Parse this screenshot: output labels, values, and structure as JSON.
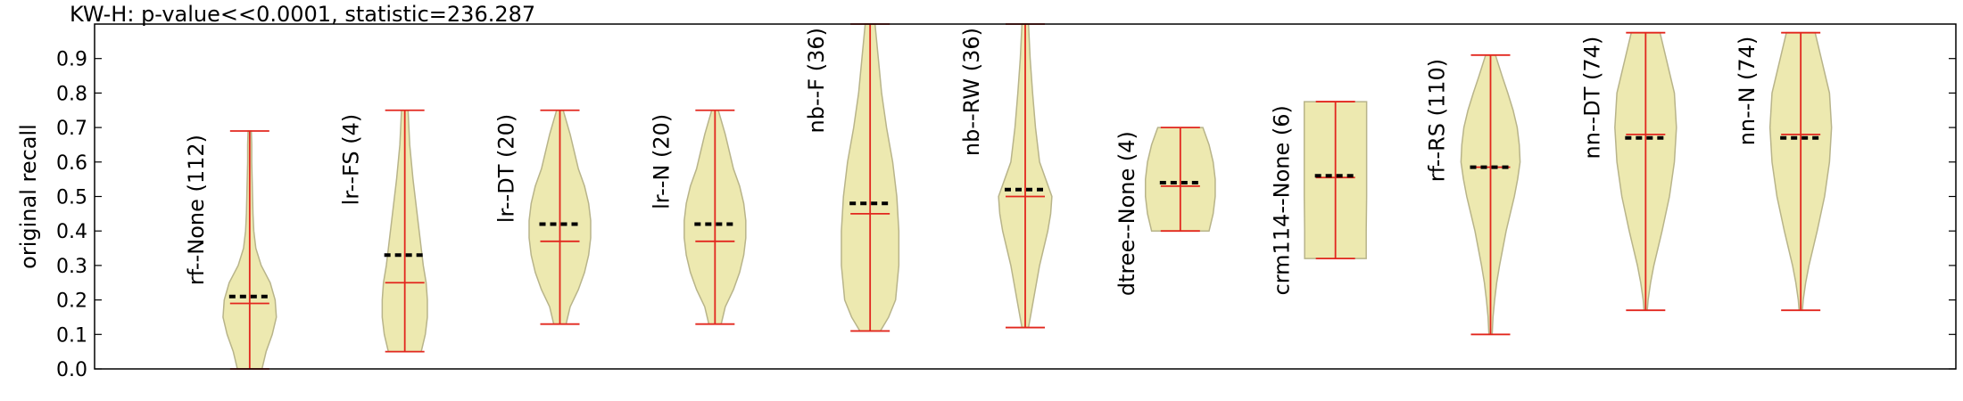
{
  "chart_data": {
    "type": "violin",
    "title": "KW-H: p-value<<0.0001, statistic=236.287",
    "ylabel": "original recall",
    "xlabel": "",
    "ylim": [
      0.0,
      1.0
    ],
    "yticks": [
      0.0,
      0.1,
      0.2,
      0.3,
      0.4,
      0.5,
      0.6,
      0.7,
      0.8,
      0.9
    ],
    "grid": false,
    "colors": {
      "body": "#ede9b0",
      "body_edge": "#b8b48a",
      "whisker": "#e2271e",
      "mean": "#000000"
    },
    "series": [
      {
        "label": "rf--None (112)",
        "min": 0.0,
        "max": 0.69,
        "median": 0.19,
        "mean": 0.21,
        "density": [
          [
            0.0,
            0.3
          ],
          [
            0.05,
            0.4
          ],
          [
            0.1,
            0.55
          ],
          [
            0.15,
            0.65
          ],
          [
            0.2,
            0.62
          ],
          [
            0.25,
            0.5
          ],
          [
            0.3,
            0.28
          ],
          [
            0.35,
            0.15
          ],
          [
            0.4,
            0.1
          ],
          [
            0.45,
            0.08
          ],
          [
            0.5,
            0.07
          ],
          [
            0.55,
            0.06
          ],
          [
            0.6,
            0.05
          ],
          [
            0.65,
            0.05
          ],
          [
            0.69,
            0.04
          ]
        ]
      },
      {
        "label": "lr--FS (4)",
        "min": 0.05,
        "max": 0.75,
        "median": 0.25,
        "mean": 0.33,
        "density": [
          [
            0.05,
            0.4
          ],
          [
            0.1,
            0.5
          ],
          [
            0.15,
            0.55
          ],
          [
            0.2,
            0.55
          ],
          [
            0.25,
            0.52
          ],
          [
            0.3,
            0.45
          ],
          [
            0.35,
            0.4
          ],
          [
            0.4,
            0.35
          ],
          [
            0.45,
            0.3
          ],
          [
            0.5,
            0.25
          ],
          [
            0.55,
            0.2
          ],
          [
            0.6,
            0.16
          ],
          [
            0.65,
            0.12
          ],
          [
            0.7,
            0.1
          ],
          [
            0.75,
            0.08
          ]
        ]
      },
      {
        "label": "lr--DT (20)",
        "min": 0.13,
        "max": 0.75,
        "median": 0.37,
        "mean": 0.42,
        "density": [
          [
            0.13,
            0.15
          ],
          [
            0.18,
            0.25
          ],
          [
            0.23,
            0.45
          ],
          [
            0.28,
            0.6
          ],
          [
            0.33,
            0.7
          ],
          [
            0.38,
            0.75
          ],
          [
            0.43,
            0.75
          ],
          [
            0.48,
            0.7
          ],
          [
            0.53,
            0.6
          ],
          [
            0.58,
            0.45
          ],
          [
            0.63,
            0.35
          ],
          [
            0.68,
            0.25
          ],
          [
            0.75,
            0.08
          ]
        ]
      },
      {
        "label": "lr--N (20)",
        "min": 0.13,
        "max": 0.75,
        "median": 0.37,
        "mean": 0.42,
        "density": [
          [
            0.13,
            0.15
          ],
          [
            0.18,
            0.25
          ],
          [
            0.23,
            0.45
          ],
          [
            0.28,
            0.6
          ],
          [
            0.33,
            0.7
          ],
          [
            0.38,
            0.75
          ],
          [
            0.43,
            0.75
          ],
          [
            0.48,
            0.7
          ],
          [
            0.53,
            0.6
          ],
          [
            0.58,
            0.45
          ],
          [
            0.63,
            0.35
          ],
          [
            0.68,
            0.25
          ],
          [
            0.75,
            0.08
          ]
        ]
      },
      {
        "label": "nb--F (36)",
        "min": 0.11,
        "max": 1.0,
        "median": 0.45,
        "mean": 0.48,
        "density": [
          [
            0.11,
            0.25
          ],
          [
            0.15,
            0.45
          ],
          [
            0.2,
            0.62
          ],
          [
            0.3,
            0.7
          ],
          [
            0.4,
            0.7
          ],
          [
            0.5,
            0.65
          ],
          [
            0.6,
            0.55
          ],
          [
            0.7,
            0.4
          ],
          [
            0.8,
            0.28
          ],
          [
            0.9,
            0.2
          ],
          [
            1.0,
            0.12
          ]
        ]
      },
      {
        "label": "nb--RW (36)",
        "min": 0.12,
        "max": 1.0,
        "median": 0.5,
        "mean": 0.52,
        "density": [
          [
            0.12,
            0.08
          ],
          [
            0.2,
            0.2
          ],
          [
            0.3,
            0.35
          ],
          [
            0.4,
            0.55
          ],
          [
            0.45,
            0.62
          ],
          [
            0.5,
            0.65
          ],
          [
            0.55,
            0.5
          ],
          [
            0.6,
            0.35
          ],
          [
            0.7,
            0.25
          ],
          [
            0.8,
            0.18
          ],
          [
            0.9,
            0.12
          ],
          [
            1.0,
            0.08
          ]
        ]
      },
      {
        "label": "dtree--None (4)",
        "min": 0.4,
        "max": 0.7,
        "median": 0.53,
        "mean": 0.54,
        "density": [
          [
            0.4,
            0.7
          ],
          [
            0.45,
            0.8
          ],
          [
            0.5,
            0.85
          ],
          [
            0.55,
            0.85
          ],
          [
            0.6,
            0.8
          ],
          [
            0.65,
            0.7
          ],
          [
            0.7,
            0.55
          ]
        ]
      },
      {
        "label": "crm114--None (6)",
        "min": 0.32,
        "max": 0.775,
        "median": 0.555,
        "mean": 0.56,
        "density": [
          [
            0.32,
            0.75
          ],
          [
            0.4,
            0.75
          ],
          [
            0.5,
            0.76
          ],
          [
            0.6,
            0.76
          ],
          [
            0.7,
            0.76
          ],
          [
            0.775,
            0.76
          ]
        ]
      },
      {
        "label": "rf--RS (110)",
        "min": 0.1,
        "max": 0.91,
        "median": 0.585,
        "mean": 0.585,
        "density": [
          [
            0.1,
            0.04
          ],
          [
            0.15,
            0.06
          ],
          [
            0.2,
            0.1
          ],
          [
            0.25,
            0.15
          ],
          [
            0.3,
            0.22
          ],
          [
            0.35,
            0.3
          ],
          [
            0.4,
            0.38
          ],
          [
            0.45,
            0.48
          ],
          [
            0.5,
            0.58
          ],
          [
            0.55,
            0.66
          ],
          [
            0.6,
            0.72
          ],
          [
            0.65,
            0.7
          ],
          [
            0.7,
            0.65
          ],
          [
            0.75,
            0.55
          ],
          [
            0.8,
            0.42
          ],
          [
            0.85,
            0.28
          ],
          [
            0.91,
            0.12
          ]
        ]
      },
      {
        "label": "nn--DT (74)",
        "min": 0.17,
        "max": 0.975,
        "median": 0.68,
        "mean": 0.67,
        "density": [
          [
            0.17,
            0.04
          ],
          [
            0.2,
            0.06
          ],
          [
            0.25,
            0.12
          ],
          [
            0.3,
            0.2
          ],
          [
            0.4,
            0.4
          ],
          [
            0.5,
            0.58
          ],
          [
            0.6,
            0.7
          ],
          [
            0.7,
            0.75
          ],
          [
            0.8,
            0.7
          ],
          [
            0.9,
            0.5
          ],
          [
            0.975,
            0.35
          ]
        ]
      },
      {
        "label": "nn--N (74)",
        "min": 0.17,
        "max": 0.975,
        "median": 0.68,
        "mean": 0.67,
        "density": [
          [
            0.17,
            0.04
          ],
          [
            0.2,
            0.06
          ],
          [
            0.25,
            0.12
          ],
          [
            0.3,
            0.2
          ],
          [
            0.4,
            0.4
          ],
          [
            0.5,
            0.58
          ],
          [
            0.6,
            0.7
          ],
          [
            0.7,
            0.75
          ],
          [
            0.8,
            0.7
          ],
          [
            0.9,
            0.5
          ],
          [
            0.975,
            0.35
          ]
        ]
      }
    ]
  }
}
